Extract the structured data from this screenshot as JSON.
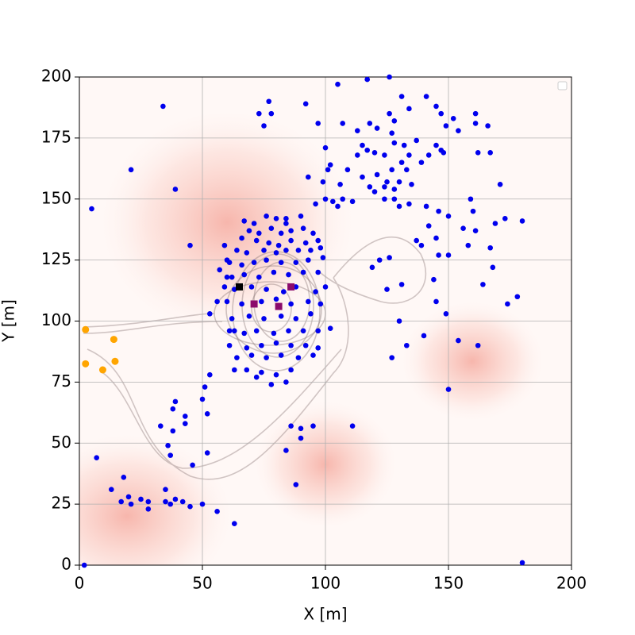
{
  "chart_data": {
    "type": "scatter",
    "xlabel": "X [m]",
    "ylabel": "Y [m]",
    "xlim": [
      0,
      200
    ],
    "ylim": [
      0,
      200
    ],
    "xticks": [
      0,
      50,
      100,
      150,
      200
    ],
    "yticks": [
      0,
      25,
      50,
      75,
      100,
      125,
      150,
      175,
      200
    ],
    "grid": true,
    "series": [
      {
        "color": "#0000ee",
        "marker": "circle",
        "x": [
          105,
          117,
          126,
          131,
          141,
          145,
          134,
          126,
          147,
          161,
          152,
          149,
          128,
          118,
          107,
          97,
          154,
          161,
          166,
          113,
          121,
          127,
          137,
          128,
          115,
          117,
          132,
          145,
          147,
          113,
          120,
          134,
          142,
          148,
          162,
          167,
          100,
          124,
          139,
          131,
          102,
          101,
          109,
          127,
          133,
          115,
          121,
          125,
          130,
          135,
          93,
          99,
          106,
          118,
          124,
          128,
          128,
          120,
          107,
          100,
          103,
          111,
          124,
          130,
          134,
          141,
          150,
          159,
          160,
          146,
          171,
          173,
          180,
          169,
          156,
          161,
          142,
          145,
          137,
          158,
          167,
          150,
          146,
          139,
          122,
          126,
          119,
          125,
          131,
          144,
          145,
          149,
          164,
          168,
          174,
          178,
          130,
          140,
          154,
          162,
          133,
          127,
          150,
          180,
          102,
          105,
          96,
          90,
          84,
          5,
          21,
          39,
          45,
          34,
          73,
          75,
          77,
          78,
          92,
          53,
          63,
          56,
          59,
          57,
          60,
          62,
          59,
          63,
          56,
          50,
          45,
          42,
          39,
          37,
          35,
          35,
          28,
          28,
          25,
          21,
          20,
          17,
          13,
          18,
          7,
          2,
          33,
          36,
          38,
          38,
          39,
          43,
          43,
          37,
          46,
          52,
          50,
          51,
          52,
          53,
          63,
          84,
          86,
          90,
          95,
          90,
          88,
          111,
          67,
          71,
          76,
          80,
          84,
          69,
          73,
          78,
          82,
          86,
          91,
          95,
          66,
          72,
          77,
          81,
          86,
          92,
          97,
          64,
          68,
          75,
          80,
          84,
          89,
          94,
          98,
          61,
          66,
          71,
          76,
          82,
          88,
          93,
          99,
          60,
          67,
          73,
          79,
          85,
          91,
          97,
          63,
          70,
          76,
          83,
          88,
          96,
          100,
          60,
          66,
          74,
          80,
          86,
          93,
          98,
          62,
          69,
          75,
          82,
          88,
          94,
          61,
          67,
          72,
          79,
          85,
          91,
          97,
          61,
          68,
          74,
          80,
          86,
          92,
          97,
          64,
          70,
          76,
          82,
          89,
          95,
          68,
          74,
          80,
          86,
          72,
          78,
          84
        ],
        "y": [
          197,
          199,
          200,
          192,
          192,
          188,
          187,
          185,
          185,
          185,
          183,
          180,
          182,
          181,
          181,
          181,
          178,
          181,
          180,
          178,
          179,
          177,
          174,
          173,
          172,
          170,
          172,
          172,
          170,
          168,
          169,
          168,
          168,
          169,
          169,
          169,
          171,
          168,
          165,
          165,
          164,
          162,
          162,
          162,
          162,
          159,
          160,
          157,
          157,
          156,
          159,
          157,
          156,
          155,
          155,
          154,
          150,
          153,
          150,
          150,
          149,
          149,
          150,
          147,
          148,
          147,
          143,
          150,
          145,
          145,
          156,
          142,
          141,
          140,
          138,
          137,
          139,
          134,
          133,
          131,
          130,
          127,
          127,
          131,
          125,
          126,
          122,
          113,
          115,
          117,
          108,
          103,
          115,
          122,
          107,
          110,
          100,
          94,
          92,
          90,
          90,
          85,
          72,
          1,
          97,
          147,
          148,
          143,
          142,
          146,
          162,
          154,
          131,
          188,
          185,
          180,
          190,
          185,
          189,
          103,
          96,
          108,
          114,
          121,
          125,
          118,
          131,
          17,
          22,
          25,
          24,
          26,
          27,
          25,
          26,
          31,
          23,
          26,
          27,
          25,
          28,
          26,
          31,
          36,
          44,
          0,
          57,
          49,
          55,
          64,
          67,
          61,
          58,
          45,
          41,
          46,
          68,
          73,
          62,
          78,
          80,
          47,
          57,
          56,
          57,
          52,
          33,
          57,
          141,
          140,
          143,
          142,
          140,
          137,
          136,
          138,
          136,
          137,
          138,
          136,
          134,
          133,
          132,
          131,
          133,
          132,
          133,
          129,
          128,
          129,
          128,
          129,
          129,
          129,
          130,
          124,
          123,
          124,
          125,
          124,
          124,
          125,
          126,
          118,
          119,
          118,
          120,
          119,
          120,
          120,
          113,
          114,
          113,
          112,
          114,
          112,
          114,
          108,
          107,
          108,
          109,
          107,
          108,
          107,
          101,
          102,
          101,
          102,
          101,
          103,
          96,
          95,
          96,
          95,
          96,
          96,
          96,
          90,
          89,
          90,
          91,
          90,
          90,
          89,
          85,
          86,
          85,
          86,
          85,
          86,
          80,
          79,
          78,
          80,
          77,
          74,
          75
        ]
      },
      {
        "color": "#ffa500",
        "marker": "circle",
        "x": [
          2.5,
          14,
          2.5,
          9.5,
          14.5
        ],
        "y": [
          96.5,
          92.5,
          82.5,
          80,
          83.5
        ]
      },
      {
        "color": "#000000",
        "marker": "square",
        "x": [
          65
        ],
        "y": [
          114
        ]
      },
      {
        "color": "#8b0a6b",
        "marker": "square",
        "x": [
          86,
          71,
          81
        ],
        "y": [
          114,
          107,
          106
        ]
      }
    ]
  }
}
